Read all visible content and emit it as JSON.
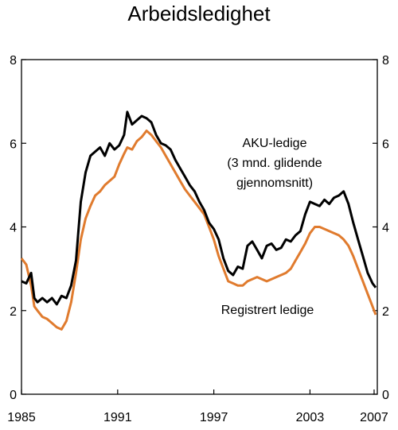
{
  "chart_data": {
    "type": "line",
    "title": "Arbeidsledighet",
    "xlabel": "",
    "ylabel": "",
    "xlim": [
      1985,
      2007.2
    ],
    "ylim": [
      0,
      8
    ],
    "y_ticks": [
      0,
      2,
      4,
      6,
      8
    ],
    "x_ticks": [
      1985,
      1991,
      1997,
      2003,
      2007
    ],
    "grid": false,
    "series": [
      {
        "name": "AKU-ledige (3 mnd. glidende gjennomsnitt)",
        "label_lines": [
          "AKU-ledige",
          "(3 mnd. glidende",
          "gjennomsnitt)"
        ],
        "color": "#000000",
        "x": [
          1985.0,
          1985.3,
          1985.6,
          1985.8,
          1986.0,
          1986.3,
          1986.6,
          1986.9,
          1987.2,
          1987.5,
          1987.8,
          1988.1,
          1988.4,
          1988.7,
          1989.0,
          1989.3,
          1989.6,
          1989.9,
          1990.2,
          1990.5,
          1990.8,
          1991.1,
          1991.4,
          1991.6,
          1991.9,
          1992.2,
          1992.5,
          1992.8,
          1993.1,
          1993.4,
          1993.7,
          1994.0,
          1994.3,
          1994.6,
          1994.9,
          1995.2,
          1995.5,
          1995.8,
          1996.1,
          1996.4,
          1996.7,
          1997.0,
          1997.3,
          1997.6,
          1997.9,
          1998.2,
          1998.5,
          1998.8,
          1999.1,
          1999.4,
          1999.7,
          2000.0,
          2000.3,
          2000.6,
          2000.9,
          2001.2,
          2001.5,
          2001.8,
          2002.1,
          2002.4,
          2002.7,
          2003.0,
          2003.3,
          2003.6,
          2003.9,
          2004.2,
          2004.5,
          2004.8,
          2005.1,
          2005.4,
          2005.7,
          2006.0,
          2006.3,
          2006.6,
          2006.9,
          2007.1
        ],
        "values": [
          2.7,
          2.65,
          2.9,
          2.3,
          2.2,
          2.3,
          2.2,
          2.3,
          2.15,
          2.35,
          2.3,
          2.6,
          3.2,
          4.6,
          5.3,
          5.7,
          5.8,
          5.9,
          5.7,
          6.0,
          5.85,
          5.95,
          6.2,
          6.75,
          6.45,
          6.55,
          6.65,
          6.6,
          6.5,
          6.2,
          6.0,
          5.95,
          5.85,
          5.6,
          5.4,
          5.2,
          5.0,
          4.85,
          4.6,
          4.4,
          4.1,
          3.95,
          3.7,
          3.25,
          2.95,
          2.85,
          3.05,
          3.0,
          3.55,
          3.65,
          3.45,
          3.25,
          3.55,
          3.6,
          3.45,
          3.5,
          3.7,
          3.65,
          3.8,
          3.9,
          4.3,
          4.6,
          4.55,
          4.5,
          4.65,
          4.55,
          4.7,
          4.75,
          4.85,
          4.55,
          4.1,
          3.7,
          3.3,
          2.9,
          2.65,
          2.55
        ]
      },
      {
        "name": "Registrert ledige",
        "label_lines": [
          "Registrert ledige"
        ],
        "color": "#E07B2E",
        "x": [
          1985.0,
          1985.3,
          1985.6,
          1985.8,
          1986.0,
          1986.3,
          1986.6,
          1986.9,
          1987.2,
          1987.5,
          1987.8,
          1988.1,
          1988.4,
          1988.7,
          1989.0,
          1989.3,
          1989.6,
          1989.9,
          1990.2,
          1990.5,
          1990.8,
          1991.1,
          1991.4,
          1991.6,
          1991.9,
          1992.2,
          1992.5,
          1992.8,
          1993.1,
          1993.4,
          1993.7,
          1994.0,
          1994.3,
          1994.6,
          1994.9,
          1995.2,
          1995.5,
          1995.8,
          1996.1,
          1996.4,
          1996.7,
          1997.0,
          1997.3,
          1997.6,
          1997.9,
          1998.2,
          1998.5,
          1998.8,
          1999.1,
          1999.4,
          1999.7,
          2000.0,
          2000.3,
          2000.6,
          2000.9,
          2001.2,
          2001.5,
          2001.8,
          2002.1,
          2002.4,
          2002.7,
          2003.0,
          2003.3,
          2003.6,
          2003.9,
          2004.2,
          2004.5,
          2004.8,
          2005.1,
          2005.4,
          2005.7,
          2006.0,
          2006.3,
          2006.6,
          2006.9,
          2007.1
        ],
        "values": [
          3.25,
          3.1,
          2.6,
          2.1,
          2.0,
          1.85,
          1.8,
          1.7,
          1.6,
          1.55,
          1.75,
          2.2,
          2.9,
          3.7,
          4.2,
          4.5,
          4.75,
          4.85,
          5.0,
          5.1,
          5.2,
          5.5,
          5.75,
          5.9,
          5.85,
          6.05,
          6.15,
          6.3,
          6.2,
          6.05,
          5.9,
          5.7,
          5.5,
          5.3,
          5.1,
          4.9,
          4.75,
          4.6,
          4.45,
          4.3,
          4.0,
          3.7,
          3.3,
          3.0,
          2.7,
          2.65,
          2.6,
          2.6,
          2.7,
          2.75,
          2.8,
          2.75,
          2.7,
          2.75,
          2.8,
          2.85,
          2.9,
          3.0,
          3.2,
          3.4,
          3.6,
          3.85,
          4.0,
          4.0,
          3.95,
          3.9,
          3.85,
          3.8,
          3.7,
          3.55,
          3.3,
          3.0,
          2.7,
          2.4,
          2.1,
          1.9
        ]
      }
    ]
  }
}
